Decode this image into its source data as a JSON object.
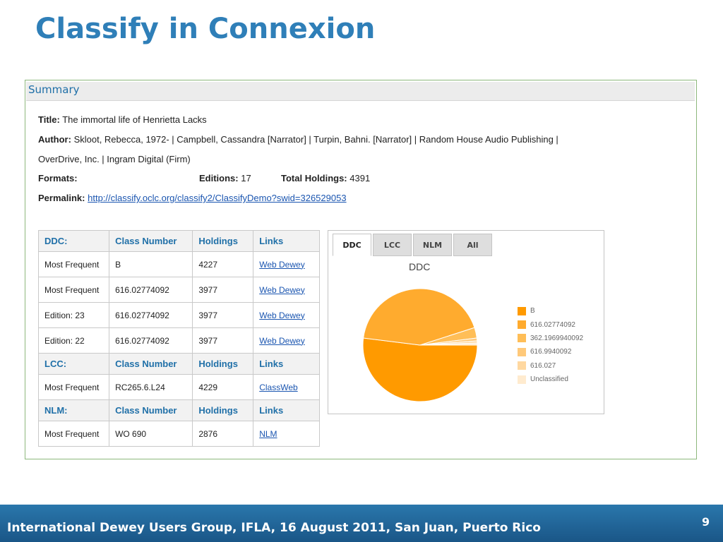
{
  "slide": {
    "title": "Classify in Connexion",
    "footer": "International Dewey Users Group, IFLA, 16 August 2011, San Juan, Puerto Rico",
    "page_number": "9"
  },
  "summary": {
    "heading": "Summary",
    "title_label": "Title:",
    "title_value": "The immortal life of Henrietta Lacks",
    "author_label": "Author:",
    "author_line1": "Skloot, Rebecca, 1972- | Campbell, Cassandra [Narrator] | Turpin, Bahni. [Narrator] | Random House Audio Publishing |",
    "author_line2": "OverDrive, Inc. | Ingram Digital (Firm)",
    "formats_label": "Formats:",
    "editions_label": "Editions:",
    "editions_value": "17",
    "holdings_label": "Total Holdings:",
    "holdings_value": "4391",
    "permalink_label": "Permalink:",
    "permalink_url": "http://classify.oclc.org/classify2/ClassifyDemo?swid=326529053"
  },
  "class_table": {
    "ddc": {
      "header": [
        "DDC:",
        "Class Number",
        "Holdings",
        "Links"
      ],
      "rows": [
        [
          "Most Frequent",
          "B",
          "4227",
          "Web Dewey"
        ],
        [
          "Most Frequent",
          "616.02774092",
          "3977",
          "Web Dewey"
        ],
        [
          "Edition: 23",
          "616.02774092",
          "3977",
          "Web Dewey"
        ],
        [
          "Edition: 22",
          "616.02774092",
          "3977",
          "Web Dewey"
        ]
      ]
    },
    "lcc": {
      "header": [
        "LCC:",
        "Class Number",
        "Holdings",
        "Links"
      ],
      "rows": [
        [
          "Most Frequent",
          "RC265.6.L24",
          "4229",
          "ClassWeb"
        ]
      ]
    },
    "nlm": {
      "header": [
        "NLM:",
        "Class Number",
        "Holdings",
        "Links"
      ],
      "rows": [
        [
          "Most Frequent",
          "WO 690",
          "2876",
          "NLM"
        ]
      ]
    }
  },
  "chart_tabs": [
    "DDC",
    "LCC",
    "NLM",
    "All"
  ],
  "chart_data": {
    "type": "pie",
    "title": "DDC",
    "categories": [
      "B",
      "616.02774092",
      "362.1969940092",
      "616.9940092",
      "616.027",
      "Unclassified"
    ],
    "values": [
      52,
      43,
      3,
      0.8,
      0.6,
      0.6
    ],
    "colors": [
      "#FF9A00",
      "#FFAB2E",
      "#FFBE57",
      "#FFC97A",
      "#FFD8A0",
      "#FFEBCF"
    ],
    "legend_position": "right"
  }
}
